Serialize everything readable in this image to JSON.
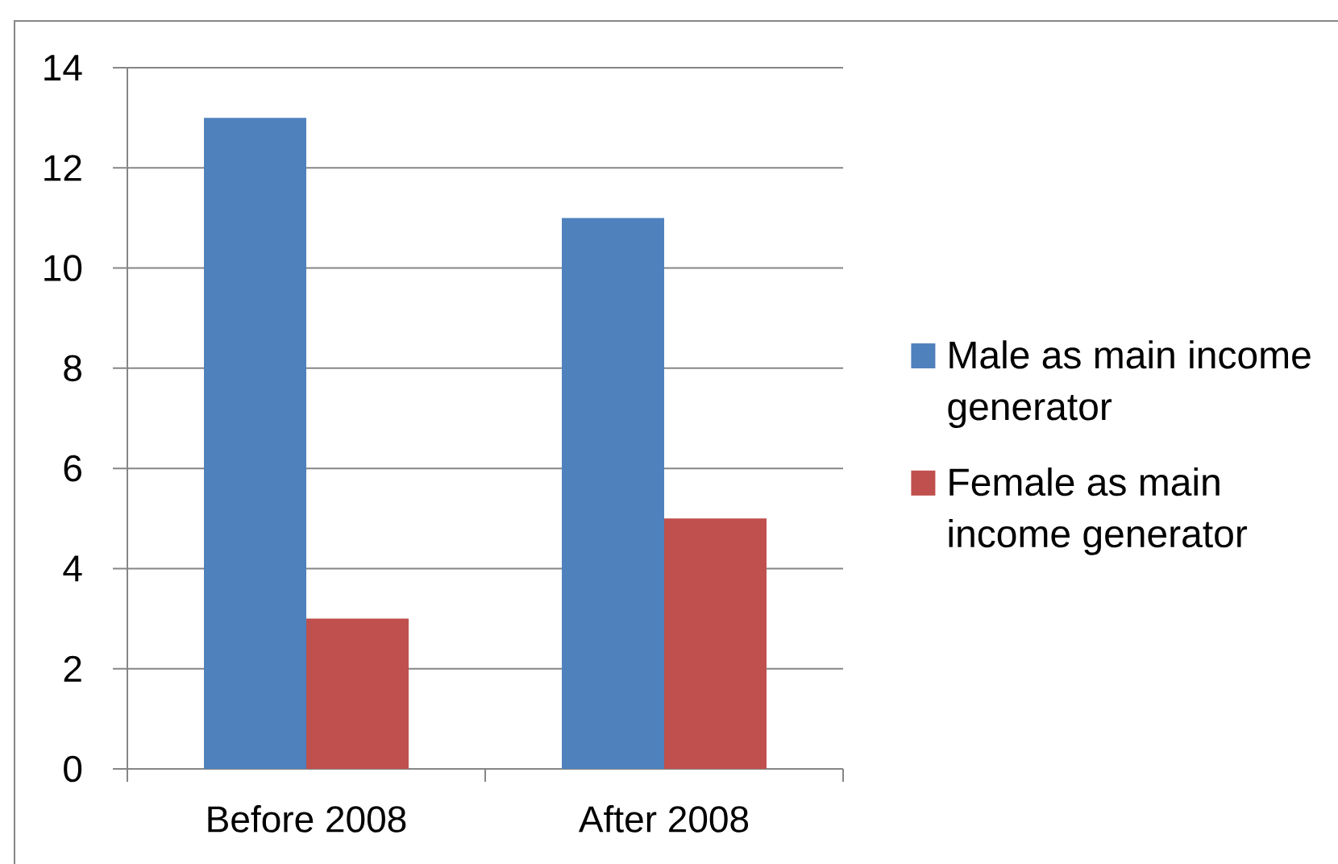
{
  "chart_data": {
    "type": "bar",
    "categories": [
      "Before 2008",
      "After 2008"
    ],
    "series": [
      {
        "name": "Male as main income generator",
        "color": "#4f81bd",
        "values": [
          13,
          11
        ]
      },
      {
        "name": "Female as main income generator",
        "color": "#c0504d",
        "values": [
          3,
          5
        ]
      }
    ],
    "ylim": [
      0,
      14
    ],
    "yticks": [
      0,
      2,
      4,
      6,
      8,
      10,
      12,
      14
    ],
    "grid": "y",
    "legend": "right"
  }
}
